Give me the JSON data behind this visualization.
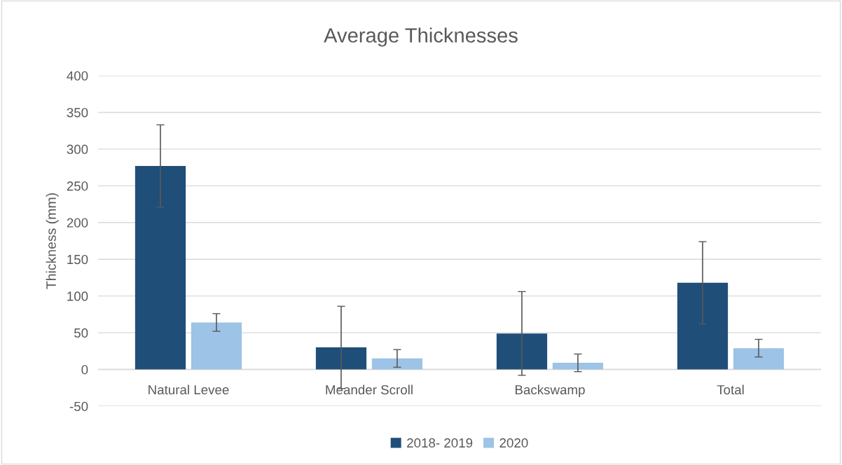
{
  "chart_data": {
    "type": "bar",
    "title": "Average Thicknesses",
    "ylabel": "Thickness (mm)",
    "categories": [
      "Natural Levee",
      "Meander Scroll",
      "Backswamp",
      "Total"
    ],
    "series": [
      {
        "name": "2018- 2019",
        "color": "#1f4e79",
        "values": [
          277,
          30,
          49,
          118
        ],
        "errors": [
          56,
          56,
          57,
          56
        ]
      },
      {
        "name": "2020",
        "color": "#9dc3e6",
        "values": [
          64,
          15,
          9,
          29
        ],
        "errors": [
          12,
          12,
          12,
          12
        ]
      }
    ],
    "ylim": [
      -50,
      400
    ],
    "yticks": [
      -50,
      0,
      50,
      100,
      150,
      200,
      250,
      300,
      350,
      400
    ],
    "grid": "y",
    "legend": "bottom"
  }
}
